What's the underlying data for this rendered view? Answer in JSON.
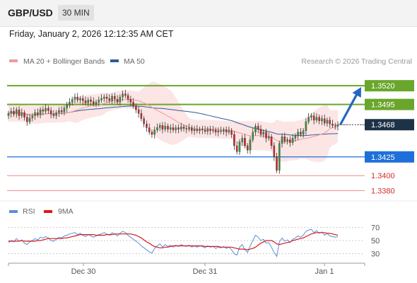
{
  "header": {
    "symbol": "GBP/USD",
    "timeframe": "30 MIN",
    "datetime": "Friday, January 2, 2026 12:12:35 AM CET"
  },
  "colors": {
    "ma20": "#f19a9a",
    "ma50": "#2f5c9a",
    "band_fill": "#fbdcdc",
    "up_candle": "#3e8e3e",
    "down_candle": "#c62828",
    "resistance": "#6aa62b",
    "support_blue": "#1e6fd9",
    "support_red": "#f08a8a",
    "current": "#1e3247",
    "rsi": "#5b8ed6",
    "rsi_ma": "#d61a1a"
  },
  "chart_data": [
    {
      "type": "candlestick",
      "legend": {
        "ma20_label": "MA 20 + Bollinger Bands",
        "ma50_label": "MA 50"
      },
      "credit": "Research © 2026 Trading Central",
      "x_ticks": [
        "Dec 30",
        "Dec 31",
        "Jan 1"
      ],
      "ylim": [
        1.337,
        1.354
      ],
      "levels": [
        {
          "name": "resistance-2",
          "value": 1.352,
          "label": "1.3520",
          "kind": "resistance"
        },
        {
          "name": "resistance-1",
          "value": 1.3495,
          "label": "1.3495",
          "kind": "resistance"
        },
        {
          "name": "current-price",
          "value": 1.3468,
          "label": "1.3468",
          "kind": "current"
        },
        {
          "name": "support-1",
          "value": 1.3425,
          "label": "1.3425",
          "kind": "support_blue"
        },
        {
          "name": "support-2",
          "value": 1.34,
          "label": "1.3400",
          "kind": "support_red"
        },
        {
          "name": "support-3",
          "value": 1.338,
          "label": "1.3380",
          "kind": "support_red"
        }
      ],
      "close": [
        1.3483,
        1.3486,
        1.3482,
        1.3488,
        1.348,
        1.3484,
        1.3478,
        1.3472,
        1.3477,
        1.348,
        1.3484,
        1.3481,
        1.3488,
        1.3486,
        1.349,
        1.3487,
        1.3482,
        1.348,
        1.3484,
        1.3487,
        1.3485,
        1.349,
        1.3494,
        1.3498,
        1.3502,
        1.3505,
        1.3501,
        1.3503,
        1.35,
        1.3497,
        1.3501,
        1.3499,
        1.3496,
        1.3498,
        1.3501,
        1.3503,
        1.3505,
        1.3503,
        1.35,
        1.3506,
        1.3502,
        1.3498,
        1.3505,
        1.3509,
        1.3507,
        1.3502,
        1.3498,
        1.3493,
        1.3488,
        1.3483,
        1.3476,
        1.3469,
        1.3464,
        1.3458,
        1.3455,
        1.3461,
        1.3464,
        1.3467,
        1.3462,
        1.3466,
        1.3462,
        1.3464,
        1.3461,
        1.3464,
        1.3462,
        1.3465,
        1.3463,
        1.3462,
        1.3464,
        1.346,
        1.3462,
        1.346,
        1.3462,
        1.3461,
        1.3459,
        1.3462,
        1.346,
        1.3461,
        1.3458,
        1.346,
        1.3459,
        1.3461,
        1.3458,
        1.346,
        1.3455,
        1.344,
        1.3432,
        1.3445,
        1.345,
        1.344,
        1.3434,
        1.3448,
        1.3458,
        1.3466,
        1.3462,
        1.3455,
        1.3458,
        1.345,
        1.3452,
        1.344,
        1.3425,
        1.3407,
        1.3443,
        1.3452,
        1.3446,
        1.3448,
        1.3444,
        1.345,
        1.3453,
        1.3458,
        1.3455,
        1.346,
        1.3472,
        1.3478,
        1.348,
        1.3474,
        1.3478,
        1.3473,
        1.3476,
        1.347,
        1.3474,
        1.3469,
        1.3467,
        1.3466,
        1.3468
      ]
    },
    {
      "type": "line",
      "legend": {
        "rsi_label": "RSI",
        "ma_label": "9MA"
      },
      "y_ticks": [
        70,
        50,
        30
      ],
      "ylim": [
        20,
        80
      ],
      "series": [
        {
          "name": "RSI",
          "values": [
            47,
            50,
            48,
            53,
            49,
            51,
            46,
            44,
            48,
            50,
            53,
            51,
            55,
            54,
            56,
            54,
            50,
            49,
            52,
            55,
            54,
            57,
            58,
            60,
            61,
            62,
            59,
            61,
            58,
            56,
            59,
            57,
            55,
            57,
            59,
            60,
            62,
            60,
            58,
            62,
            60,
            57,
            61,
            64,
            62,
            58,
            55,
            52,
            49,
            46,
            42,
            39,
            36,
            33,
            31,
            38,
            42,
            45,
            40,
            44,
            41,
            43,
            40,
            43,
            41,
            44,
            42,
            41,
            43,
            40,
            42,
            40,
            42,
            41,
            39,
            42,
            40,
            41,
            38,
            40,
            39,
            41,
            38,
            40,
            36,
            30,
            28,
            40,
            44,
            36,
            32,
            42,
            50,
            58,
            55,
            50,
            52,
            46,
            47,
            40,
            32,
            26,
            48,
            54,
            49,
            51,
            47,
            52,
            54,
            57,
            55,
            58,
            64,
            66,
            67,
            62,
            65,
            61,
            63,
            58,
            61,
            57,
            56,
            55,
            56
          ]
        },
        {
          "name": "9MA",
          "values": [
            49,
            49,
            49,
            49,
            49,
            50,
            49,
            49,
            49,
            49,
            49,
            50,
            50,
            51,
            52,
            53,
            53,
            53,
            53,
            53,
            53,
            54,
            54,
            55,
            56,
            57,
            58,
            59,
            59,
            59,
            59,
            59,
            59,
            58,
            58,
            58,
            58,
            59,
            59,
            59,
            60,
            60,
            60,
            60,
            60,
            60,
            60,
            59,
            58,
            56,
            54,
            51,
            48,
            46,
            43,
            41,
            40,
            39,
            39,
            40,
            40,
            41,
            42,
            42,
            42,
            42,
            42,
            42,
            42,
            42,
            42,
            42,
            42,
            42,
            41,
            41,
            41,
            41,
            41,
            41,
            40,
            40,
            40,
            40,
            40,
            39,
            38,
            37,
            37,
            37,
            36,
            37,
            38,
            40,
            43,
            46,
            48,
            50,
            50,
            50,
            48,
            45,
            44,
            45,
            46,
            47,
            48,
            50,
            51,
            52,
            53,
            54,
            56,
            58,
            60,
            61,
            62,
            62,
            62,
            62,
            61,
            61,
            60,
            59,
            58
          ]
        }
      ]
    }
  ]
}
